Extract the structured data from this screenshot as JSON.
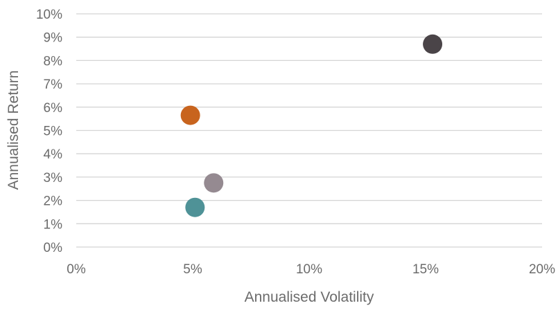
{
  "chart_data": {
    "type": "scatter",
    "title": "",
    "xlabel": "Annualised Volatility",
    "ylabel": "Annualised Return",
    "xlim": [
      0,
      20
    ],
    "ylim": [
      0,
      10
    ],
    "x_ticks": [
      "0%",
      "5%",
      "10%",
      "15%",
      "20%"
    ],
    "y_ticks": [
      "0%",
      "1%",
      "2%",
      "3%",
      "4%",
      "5%",
      "6%",
      "7%",
      "8%",
      "9%",
      "10%"
    ],
    "grid": "horizontal",
    "legend": "none",
    "points": [
      {
        "x": 15.3,
        "y": 8.7,
        "color": "#4a4448"
      },
      {
        "x": 4.9,
        "y": 5.65,
        "color": "#c8641e"
      },
      {
        "x": 5.9,
        "y": 2.75,
        "color": "#958a91"
      },
      {
        "x": 5.1,
        "y": 1.7,
        "color": "#4f9297"
      }
    ]
  }
}
